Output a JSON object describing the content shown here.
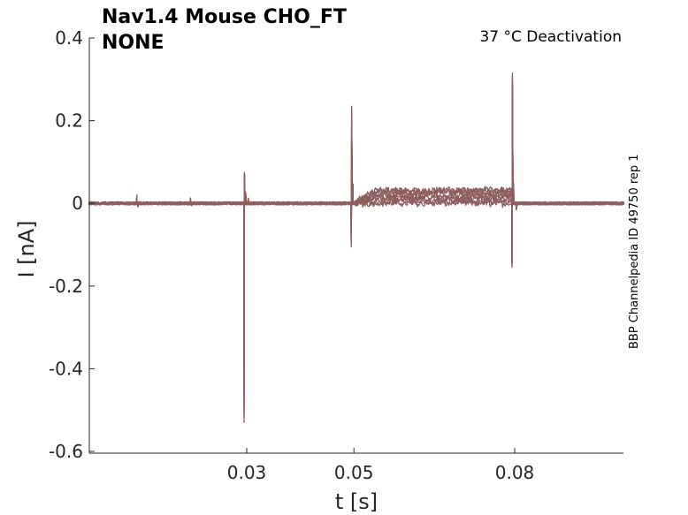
{
  "chart_data": {
    "type": "line",
    "title_lines": [
      "Nav1.4  Mouse  CHO_FT",
      "NONE"
    ],
    "annotation": "37 °C  Deactivation",
    "side_label": "BBP Channelpedia ID 49750 rep 1",
    "xlabel": "t [s]",
    "ylabel": "I [nA]",
    "xlim": [
      0.0005,
      0.1005
    ],
    "ylim": [
      -0.62,
      0.4
    ],
    "x_ticks": [
      0.03,
      0.05,
      0.08
    ],
    "x_tick_labels": [
      "0.03",
      "0.05",
      "0.08"
    ],
    "y_ticks": [
      0.4,
      0.2,
      0,
      -0.2,
      -0.4,
      -0.6
    ],
    "y_tick_labels": [
      "0.4",
      "0.2",
      "0",
      "-0.2",
      "-0.4",
      "-0.6"
    ],
    "grid": false,
    "line_color": "#8e5e5e",
    "series_count": 8,
    "baseline": 0.0,
    "baseline_noise": 0.004,
    "events": [
      {
        "t": 0.0095,
        "kind": "blip",
        "amplitude": 0.02
      },
      {
        "t": 0.0195,
        "kind": "blip",
        "amplitude": 0.013
      },
      {
        "t": 0.0295,
        "kind": "spike",
        "min": -0.53,
        "max": 0.075,
        "after_level": 0.012
      },
      {
        "t": 0.0495,
        "kind": "spike",
        "min": -0.105,
        "max": 0.235,
        "after_level": 0.0
      },
      {
        "t": 0.0795,
        "kind": "spike",
        "min": -0.155,
        "max": 0.315,
        "after_level": -0.015
      }
    ],
    "plateau": {
      "t_start": 0.05,
      "t_end": 0.0795,
      "levels": [
        0.0,
        0.005,
        0.01,
        0.015,
        0.02,
        0.025,
        0.03,
        0.032
      ]
    }
  }
}
